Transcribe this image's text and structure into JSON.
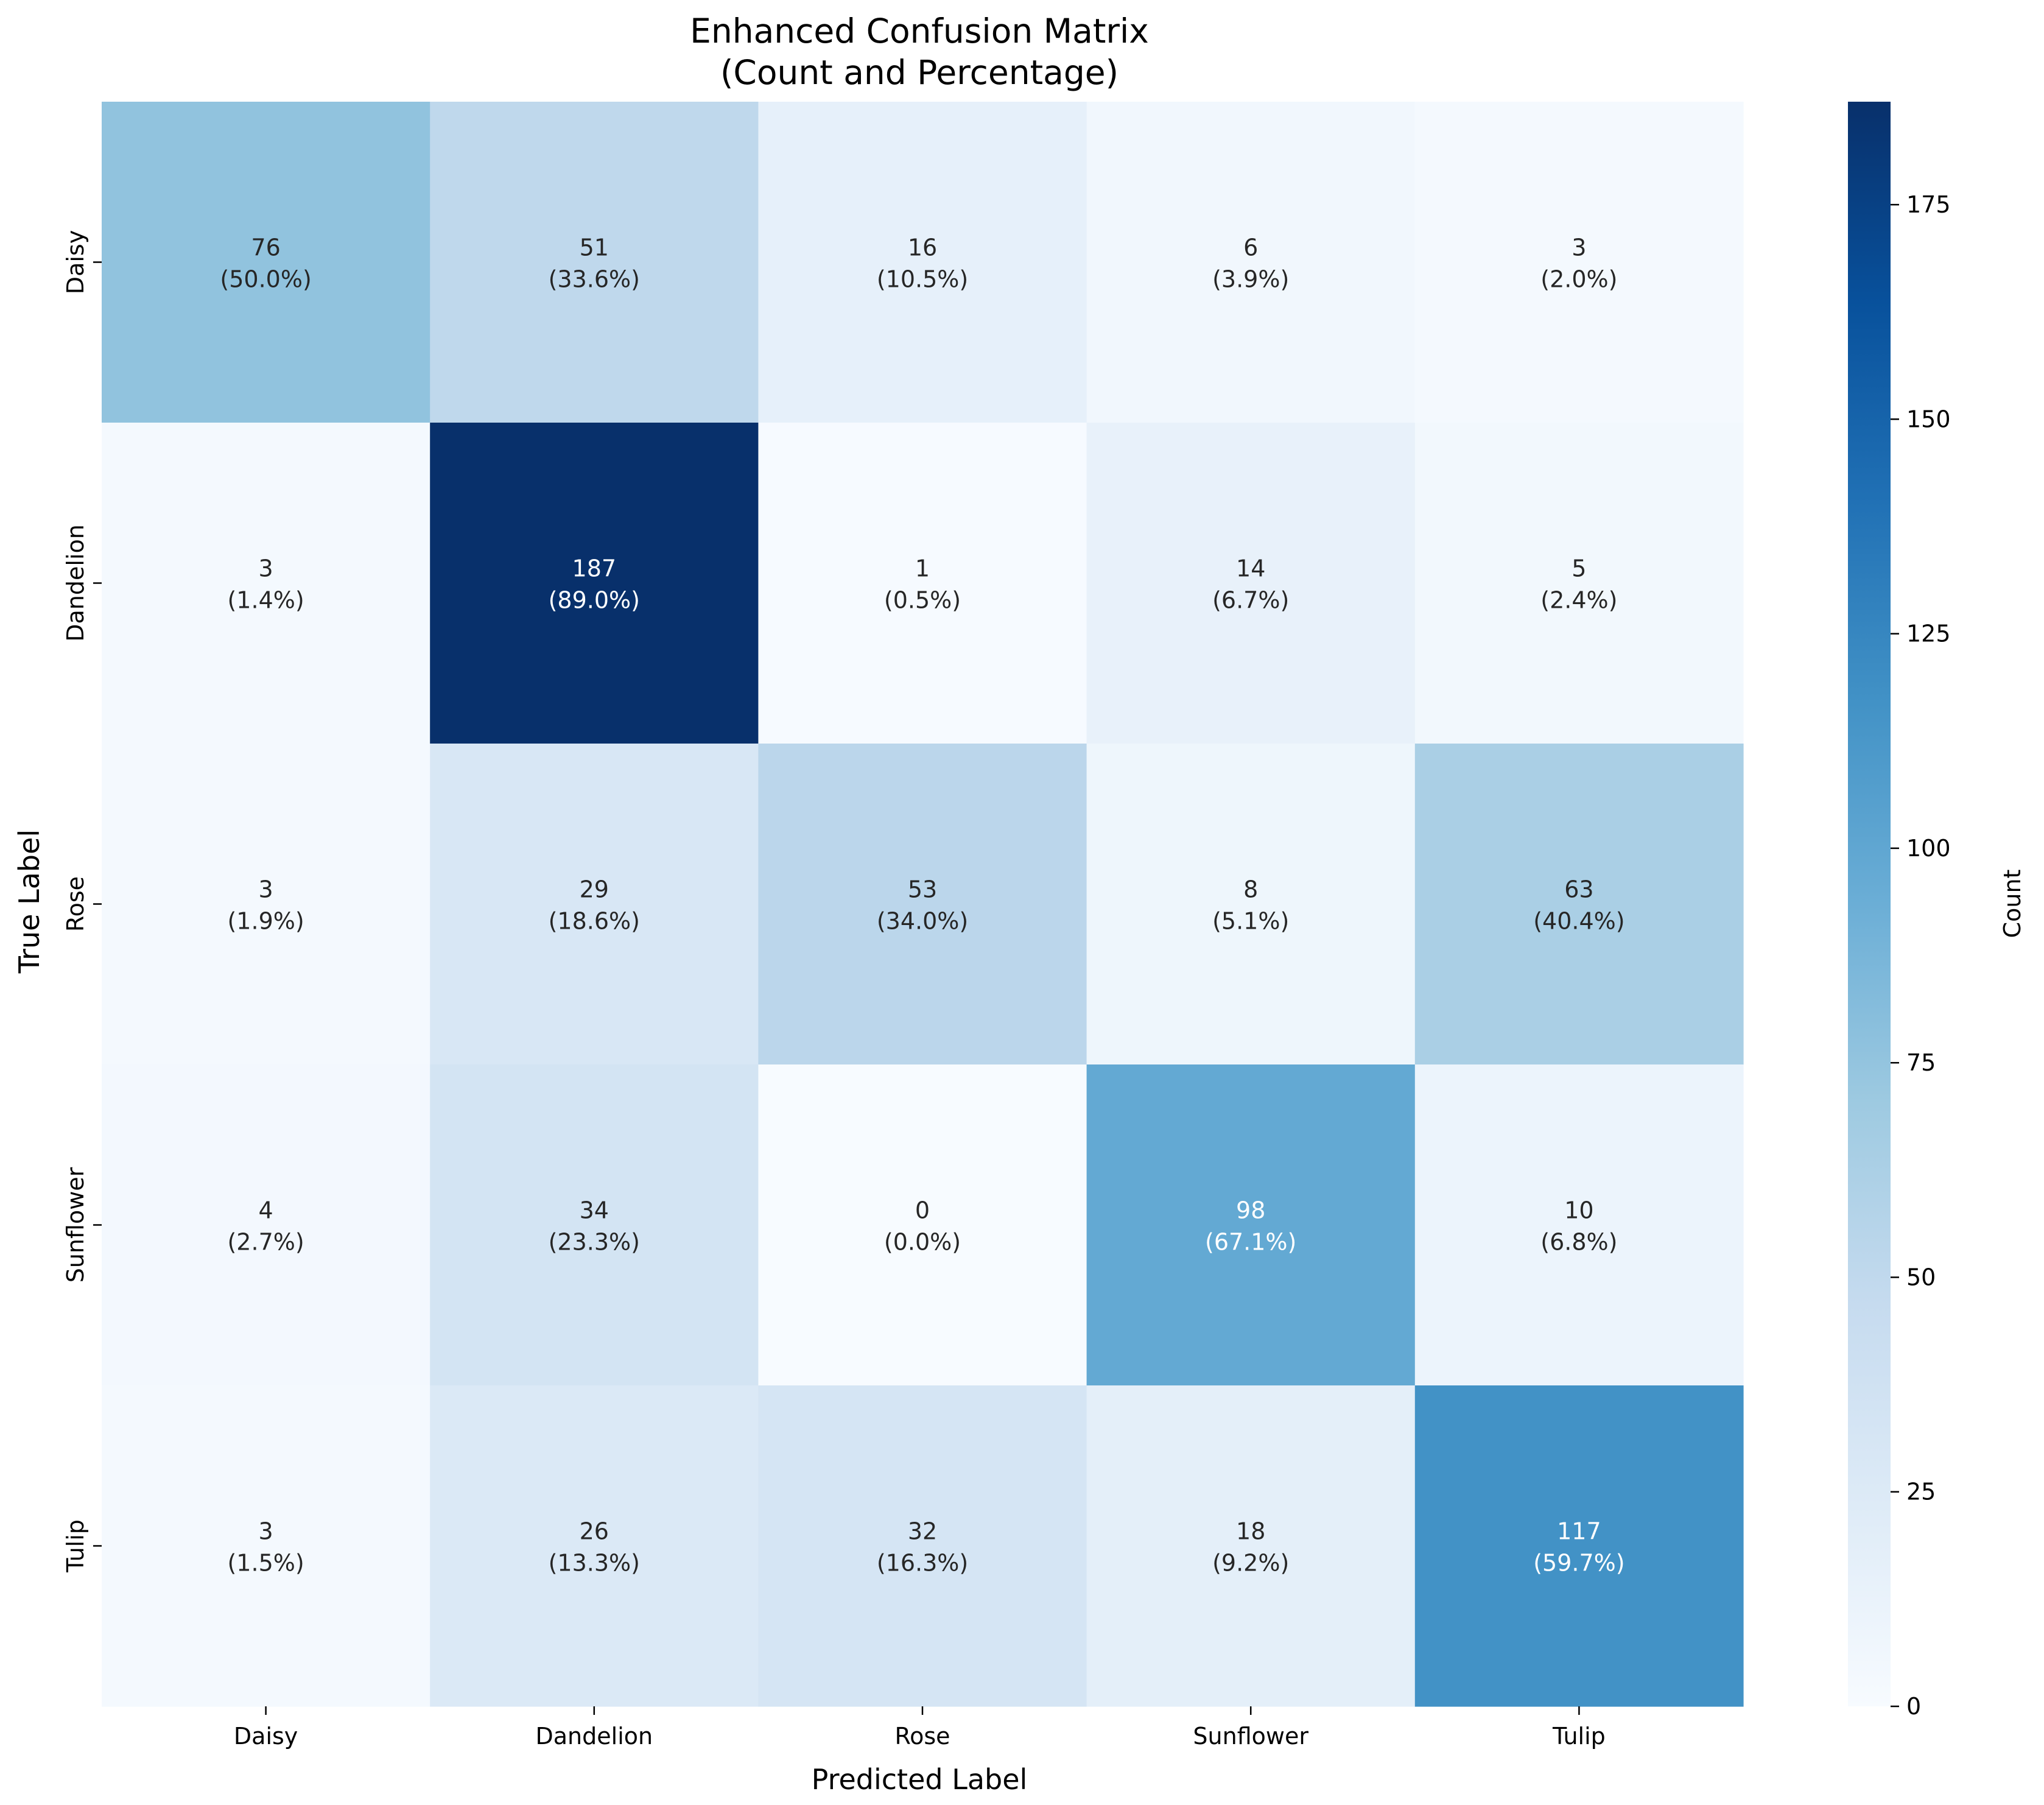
{
  "chart_data": {
    "type": "heatmap",
    "title": "Enhanced Confusion Matrix",
    "subtitle": "(Count and Percentage)",
    "xlabel": "Predicted Label",
    "ylabel": "True Label",
    "x_categories": [
      "Daisy",
      "Dandelion",
      "Rose",
      "Sunflower",
      "Tulip"
    ],
    "y_categories": [
      "Daisy",
      "Dandelion",
      "Rose",
      "Sunflower",
      "Tulip"
    ],
    "counts": [
      [
        76,
        51,
        16,
        6,
        3
      ],
      [
        3,
        187,
        1,
        14,
        5
      ],
      [
        3,
        29,
        53,
        8,
        63
      ],
      [
        4,
        34,
        0,
        98,
        10
      ],
      [
        3,
        26,
        32,
        18,
        117
      ]
    ],
    "percent_labels": [
      [
        "(50.0%)",
        "(33.6%)",
        "(10.5%)",
        "(3.9%)",
        "(2.0%)"
      ],
      [
        "(1.4%)",
        "(89.0%)",
        "(0.5%)",
        "(6.7%)",
        "(2.4%)"
      ],
      [
        "(1.9%)",
        "(18.6%)",
        "(34.0%)",
        "(5.1%)",
        "(40.4%)"
      ],
      [
        "(2.7%)",
        "(23.3%)",
        "(0.0%)",
        "(67.1%)",
        "(6.8%)"
      ],
      [
        "(1.5%)",
        "(13.3%)",
        "(16.3%)",
        "(9.2%)",
        "(59.7%)"
      ]
    ],
    "colorbar": {
      "label": "Count",
      "min": 0,
      "max": 187,
      "ticks": [
        0,
        25,
        50,
        75,
        100,
        125,
        150,
        175
      ]
    },
    "colormap": "Blues",
    "grid": false
  }
}
